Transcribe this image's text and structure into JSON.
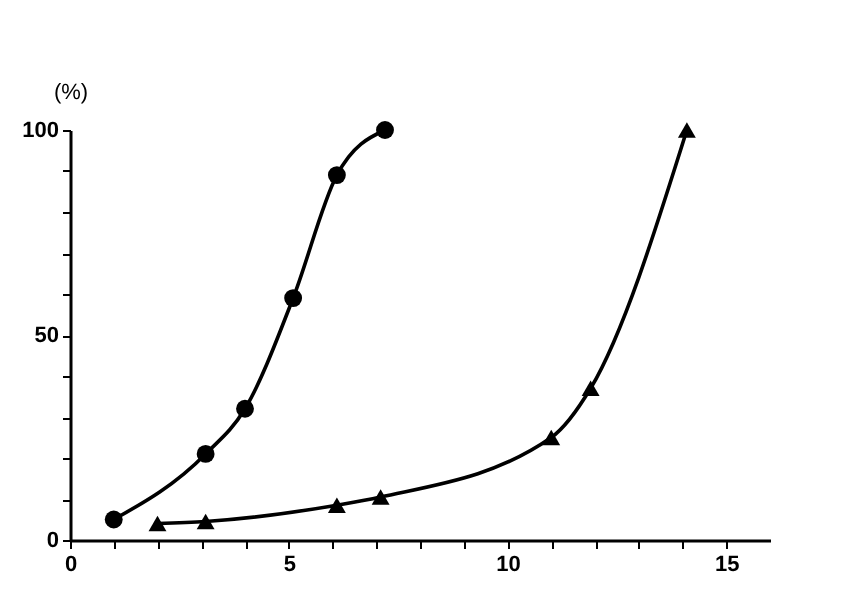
{
  "chart_data": {
    "type": "line",
    "ylabel": "(%)",
    "xlim": [
      0,
      16
    ],
    "ylim": [
      0,
      100
    ],
    "xticks": [
      0,
      {
        "value": 1,
        "label": null
      },
      {
        "value": 2,
        "label": null
      },
      {
        "value": 3,
        "label": null
      },
      {
        "value": 4,
        "label": null
      },
      5,
      {
        "value": 6,
        "label": null
      },
      {
        "value": 7,
        "label": null
      },
      {
        "value": 8,
        "label": null
      },
      {
        "value": 9,
        "label": null
      },
      10,
      {
        "value": 11,
        "label": null
      },
      {
        "value": 12,
        "label": null
      },
      {
        "value": 13,
        "label": null
      },
      {
        "value": 14,
        "label": null
      },
      15
    ],
    "yticks": [
      0,
      {
        "value": 10,
        "label": null
      },
      {
        "value": 20,
        "label": null
      },
      {
        "value": 30,
        "label": null
      },
      {
        "value": 40,
        "label": null
      },
      50,
      {
        "value": 60,
        "label": null
      },
      {
        "value": 70,
        "label": null
      },
      {
        "value": 80,
        "label": null
      },
      {
        "value": 90,
        "label": null
      },
      100
    ],
    "grid": false,
    "line_style": "solid",
    "series": [
      {
        "color": "#000000",
        "marker": "circle",
        "x": [
          1,
          3.1,
          4,
          5.1,
          6.1,
          7.2
        ],
        "values": [
          5,
          21,
          32,
          59,
          89,
          100
        ]
      },
      {
        "color": "#000000",
        "marker": "triangle",
        "x": [
          2,
          3.1,
          6.1,
          7.1,
          11,
          11.9,
          14.1
        ],
        "values": [
          4,
          4.5,
          8.5,
          10.5,
          25,
          37,
          100
        ]
      }
    ]
  }
}
